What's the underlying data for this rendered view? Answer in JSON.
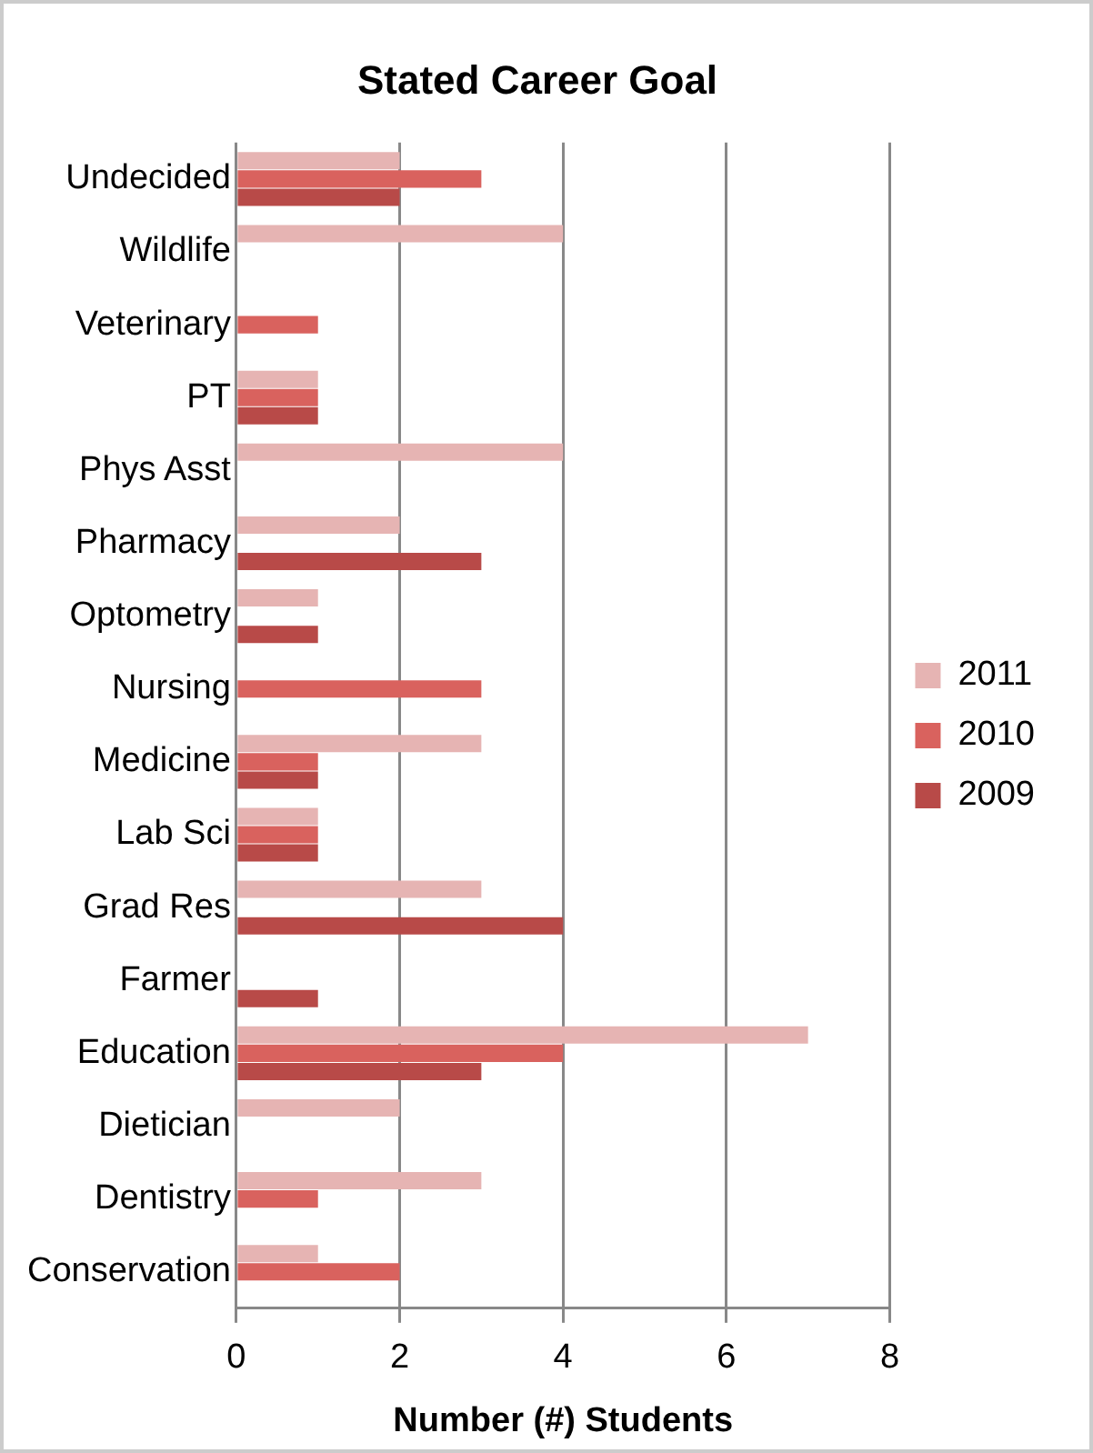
{
  "chart_data": {
    "type": "bar",
    "orientation": "horizontal",
    "title": "Stated Career Goal",
    "xlabel": "Number (#) Students",
    "categories": [
      "Undecided",
      "Wildlife",
      "Veterinary",
      "PT",
      "Phys Asst",
      "Pharmacy",
      "Optometry",
      "Nursing",
      "Medicine",
      "Lab Sci",
      "Grad Res",
      "Farmer",
      "Education",
      "Dietician",
      "Dentistry",
      "Conservation"
    ],
    "series": [
      {
        "name": "2011",
        "color": "#e6b4b3",
        "values": [
          2,
          4,
          null,
          1,
          4,
          2,
          1,
          null,
          3,
          1,
          3,
          null,
          7,
          2,
          3,
          1
        ]
      },
      {
        "name": "2010",
        "color": "#d9625e",
        "values": [
          3,
          null,
          1,
          1,
          null,
          null,
          null,
          3,
          1,
          1,
          null,
          null,
          4,
          null,
          1,
          2
        ]
      },
      {
        "name": "2009",
        "color": "#b84a48",
        "values": [
          2,
          null,
          null,
          1,
          null,
          3,
          1,
          null,
          1,
          1,
          4,
          1,
          3,
          null,
          null,
          null
        ]
      }
    ],
    "xlim": [
      0,
      8
    ],
    "xticks": [
      0,
      2,
      4,
      6,
      8
    ],
    "grid": "x",
    "legend": "right"
  }
}
